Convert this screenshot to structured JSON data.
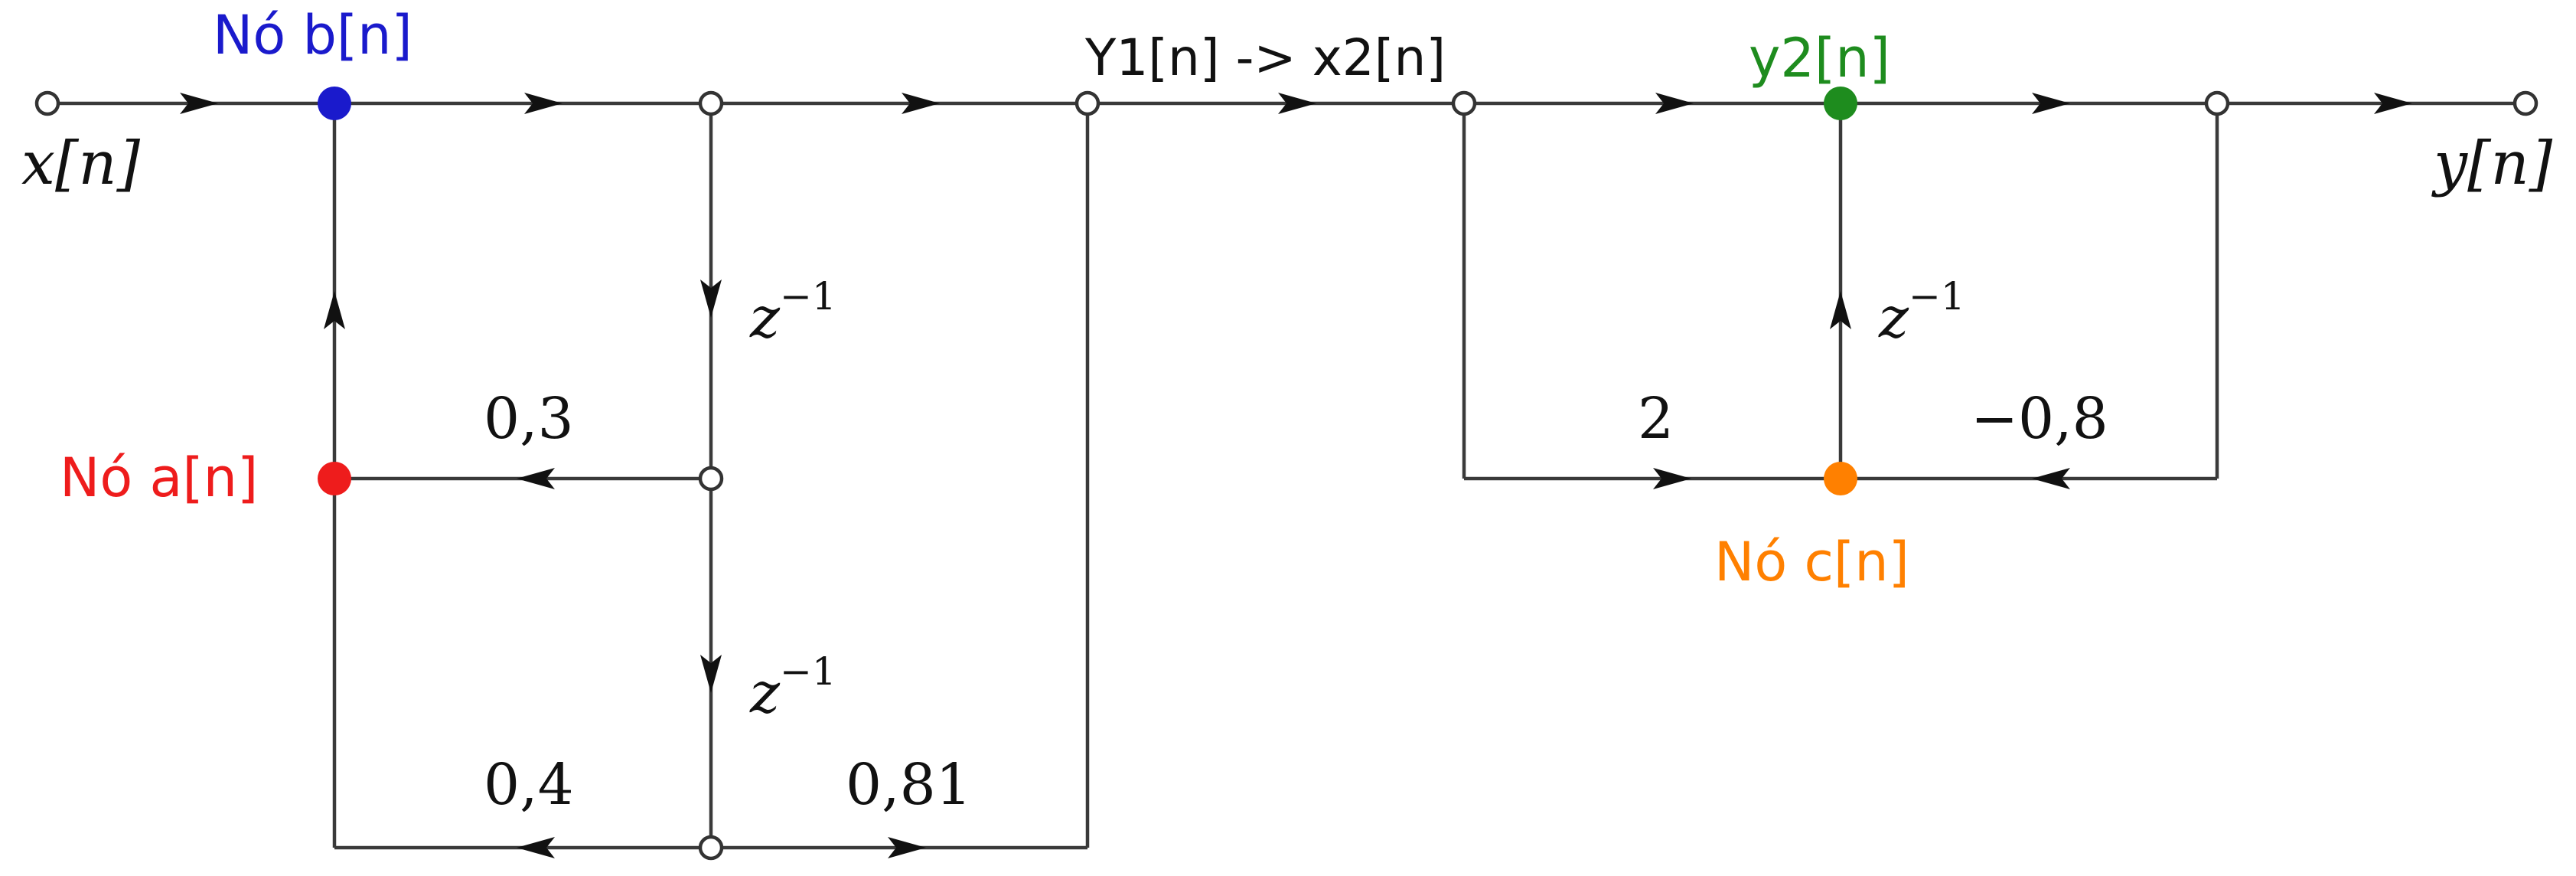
{
  "signals": {
    "input": "x[n]",
    "output": "y[n]"
  },
  "labels": {
    "node_b": "Nó b[n]",
    "node_a": "Nó a[n]",
    "node_c": "Nó c[n]",
    "intermediate": "Y1[n] -> x2[n]",
    "y2": "y2[n]"
  },
  "delays": {
    "d1": "z",
    "d2": "z",
    "d3": "z",
    "exponent": "−1"
  },
  "gains": {
    "g_03": "0,3",
    "g_04": "0,4",
    "g_081": "0,81",
    "g_2": "2",
    "g_neg08": "−0,8"
  },
  "colors": {
    "node_b": "#1a1acc",
    "node_a": "#ee1c1c",
    "node_c": "#ff8000",
    "y2": "#1e8c1e",
    "wire": "#3a3a3a",
    "intermediate": "#111111"
  }
}
